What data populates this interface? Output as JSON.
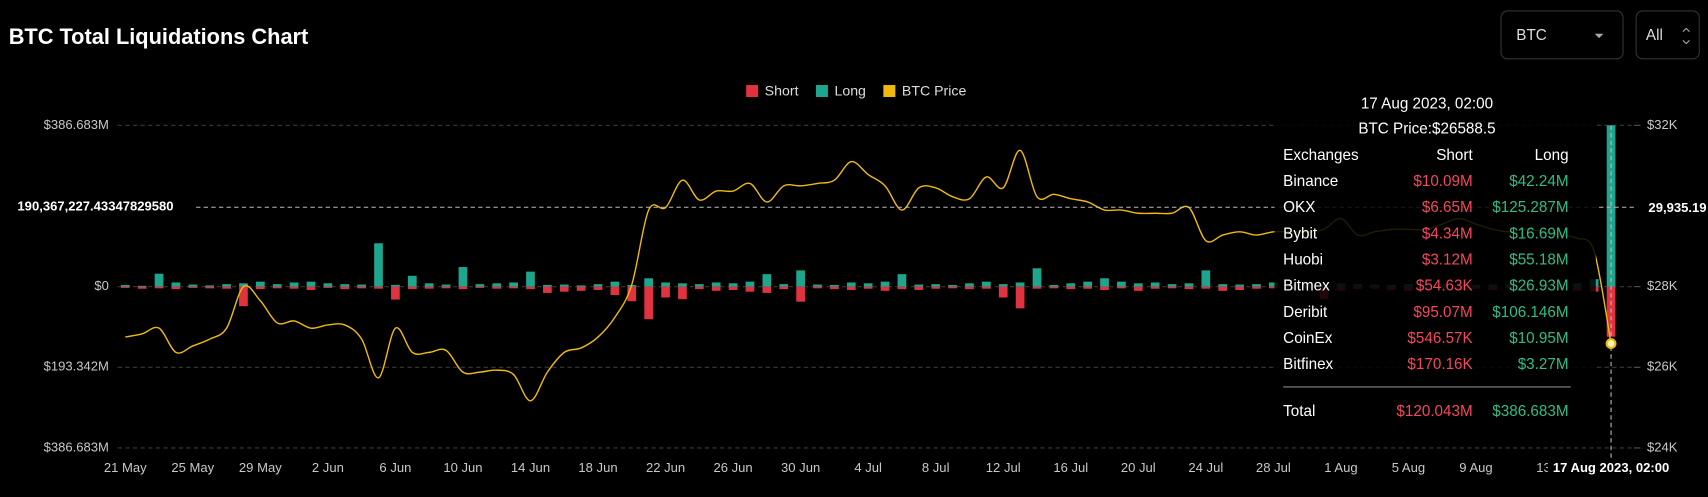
{
  "controls": [
    "BTC",
    "All"
  ],
  "chart_data": {
    "type": "bar",
    "title": "BTC Total Liquidations Chart",
    "categories": [
      "21 May",
      null,
      null,
      null,
      "25 May",
      null,
      null,
      null,
      "29 May",
      null,
      null,
      null,
      "2 Jun",
      null,
      null,
      null,
      "6 Jun",
      null,
      null,
      null,
      "10 Jun",
      null,
      null,
      null,
      "14 Jun",
      null,
      null,
      null,
      "18 Jun",
      null,
      null,
      null,
      "22 Jun",
      null,
      null,
      null,
      "26 Jun",
      null,
      null,
      null,
      "30 Jun",
      null,
      null,
      null,
      "4 Jul",
      null,
      null,
      null,
      "8 Jul",
      null,
      null,
      null,
      "12 Jul",
      null,
      null,
      null,
      "16 Jul",
      null,
      null,
      null,
      "20 Jul",
      null,
      null,
      null,
      "24 Jul",
      null,
      null,
      null,
      "28 Jul",
      null,
      null,
      null,
      "1 Aug",
      null,
      null,
      null,
      "5 Aug",
      null,
      null,
      null,
      "9 Aug",
      null,
      null,
      null,
      "13",
      null,
      null,
      null,
      "17 Aug 2023, 02:00"
    ],
    "series": [
      {
        "name": "Short",
        "color": "#e0323f",
        "type": "bar",
        "values": [
          -3,
          -5,
          -4,
          -6,
          -3,
          -4,
          -5,
          -47,
          -6,
          -4,
          -5,
          -8,
          -3,
          -6,
          -4,
          -5,
          -31,
          -6,
          -5,
          -4,
          -6,
          -3,
          -5,
          -4,
          -6,
          -15,
          -12,
          -10,
          -8,
          -20,
          -35,
          -78,
          -26,
          -30,
          -6,
          -10,
          -8,
          -12,
          -15,
          -6,
          -36,
          -4,
          -6,
          -8,
          -5,
          -10,
          -6,
          -8,
          -5,
          -4,
          -6,
          -5,
          -26,
          -52,
          -5,
          -4,
          -6,
          -5,
          -8,
          -4,
          -10,
          -5,
          -4,
          -6,
          -5,
          -10,
          -8,
          -5,
          -4,
          -6,
          -4,
          -30,
          -10,
          -6,
          -5,
          -8,
          -10,
          -5,
          -4,
          -6,
          -5,
          -8,
          -4,
          -5,
          -6,
          -8,
          -10,
          -12,
          -120.043
        ]
      },
      {
        "name": "Long",
        "color": "#1fa58e",
        "type": "bar",
        "values": [
          4,
          2,
          31,
          10,
          5,
          3,
          6,
          8,
          12,
          6,
          10,
          12,
          8,
          6,
          5,
          104,
          4,
          26,
          8,
          5,
          47,
          6,
          8,
          10,
          36,
          4,
          5,
          3,
          6,
          12,
          4,
          20,
          10,
          8,
          6,
          10,
          8,
          12,
          30,
          6,
          39,
          5,
          4,
          10,
          8,
          12,
          30,
          5,
          6,
          4,
          8,
          12,
          6,
          10,
          44,
          4,
          8,
          12,
          20,
          12,
          8,
          10,
          6,
          8,
          39,
          6,
          5,
          6,
          10,
          6,
          5,
          4,
          8,
          6,
          5,
          4,
          6,
          5,
          6,
          5,
          4,
          5,
          6,
          5,
          4,
          6,
          8,
          18,
          386.683
        ]
      },
      {
        "name": "BTC Price",
        "color": "#f0b90b",
        "type": "line",
        "axis": "y2",
        "values": [
          26750,
          26830,
          26970,
          26370,
          26530,
          26700,
          26970,
          28000,
          27650,
          27100,
          27150,
          26970,
          27050,
          27050,
          26700,
          25740,
          26970,
          26370,
          26370,
          26420,
          25880,
          25880,
          25930,
          25820,
          25170,
          25880,
          26370,
          26480,
          26750,
          27240,
          28050,
          29900,
          29960,
          30640,
          30150,
          30370,
          30370,
          30560,
          30100,
          30500,
          30500,
          30560,
          30640,
          31100,
          30780,
          30500,
          29900,
          30450,
          30450,
          30230,
          30180,
          30720,
          30450,
          31380,
          30230,
          30290,
          30180,
          30100,
          29900,
          29900,
          29820,
          29820,
          29820,
          29960,
          29140,
          29280,
          29360,
          29280,
          29360,
          29360,
          29360,
          29420,
          29690,
          29280,
          29360,
          29420,
          29420,
          29420,
          29550,
          29690,
          29550,
          29420,
          29360,
          29420,
          29360,
          29280,
          29200,
          28870,
          26588.5
        ]
      }
    ],
    "ylim": [
      -386.683,
      386.683
    ],
    "yticks": [
      {
        "value": 386.683,
        "label": "$386.683M"
      },
      {
        "value": 0,
        "label": "$0"
      },
      {
        "value": -193.342,
        "label": "$193.342M"
      },
      {
        "value": -386.683,
        "label": "$386.683M"
      }
    ],
    "y2lim": [
      24000,
      32000
    ],
    "y2ticks": [
      {
        "value": 32000,
        "label": "$32K"
      },
      {
        "value": 28000,
        "label": "$28K"
      },
      {
        "value": 26000,
        "label": "$26K"
      },
      {
        "value": 24000,
        "label": "$24K"
      }
    ],
    "grid": true,
    "crosshair": {
      "y": {
        "value": 190.367,
        "label": "190,367,227.43347829580"
      },
      "y2": {
        "value": 29935.19,
        "label": "29,935.19"
      },
      "index": 88
    },
    "tooltip": {
      "title": "17 Aug 2023, 02:00",
      "price": "BTC Price:$26588.5",
      "header": [
        "Exchanges",
        "Short",
        "Long"
      ],
      "rows": [
        [
          "Binance",
          "$10.09M",
          "$42.24M"
        ],
        [
          "OKX",
          "$6.65M",
          "$125.287M"
        ],
        [
          "Bybit",
          "$4.34M",
          "$16.69M"
        ],
        [
          "Huobi",
          "$3.12M",
          "$55.18M"
        ],
        [
          "Bitmex",
          "$54.63K",
          "$26.93M"
        ],
        [
          "Deribit",
          "$95.07M",
          "$106.146M"
        ],
        [
          "CoinEx",
          "$546.57K",
          "$10.95M"
        ],
        [
          "Bitfinex",
          "$170.16K",
          "$3.27M"
        ]
      ],
      "total": [
        "Total",
        "$120.043M",
        "$386.683M"
      ]
    }
  }
}
